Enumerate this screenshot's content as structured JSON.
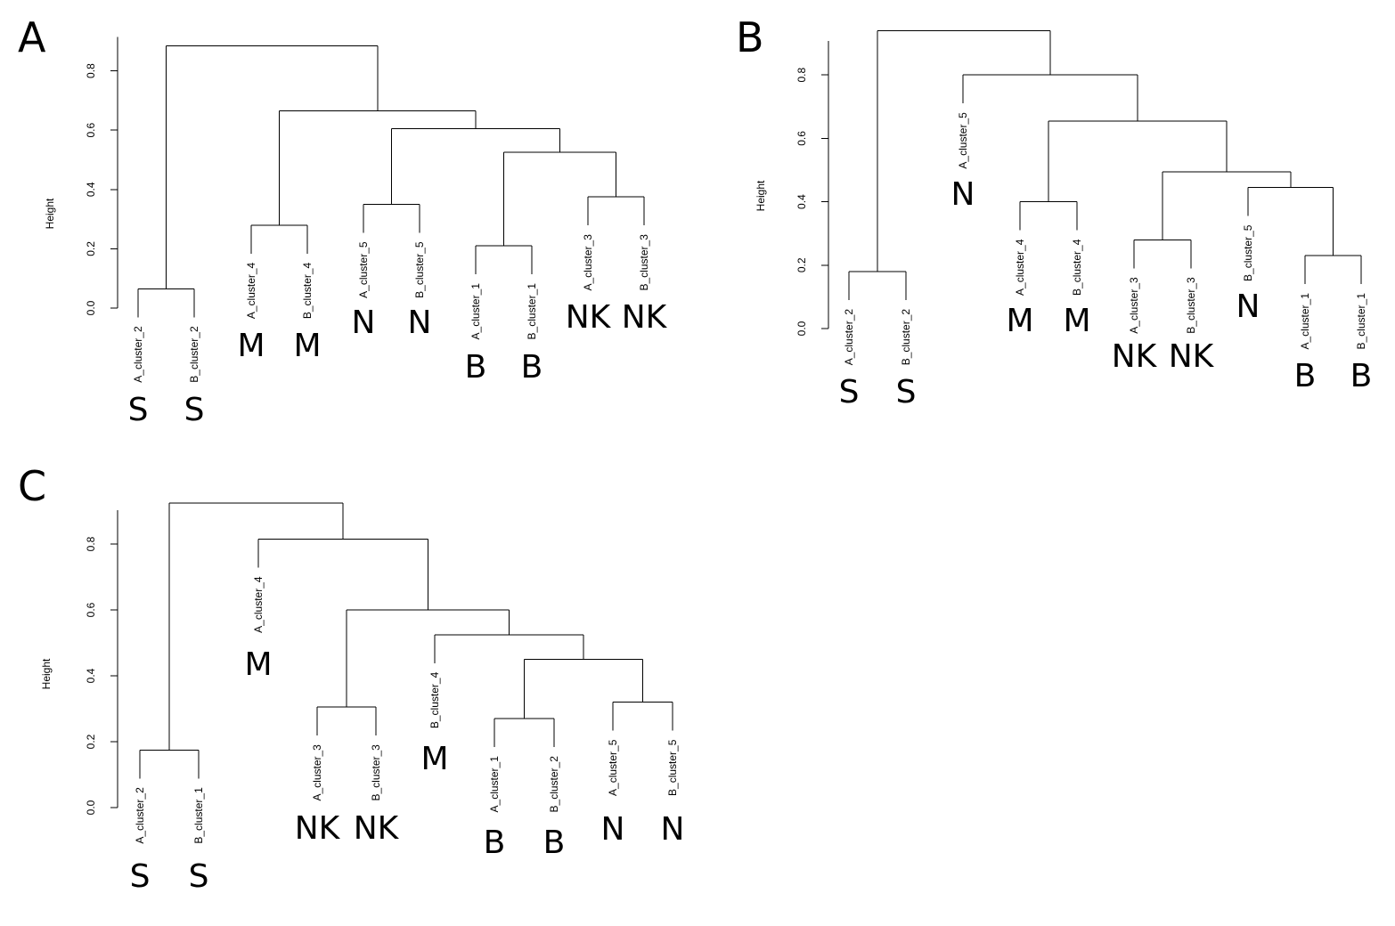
{
  "chart_data": [
    {
      "type": "dendrogram",
      "panel_label": "A",
      "ylabel": "Height",
      "ylim": [
        0,
        0.9
      ],
      "yticks": [
        "0.0",
        "0.2",
        "0.4",
        "0.6",
        "0.8"
      ],
      "leaves": [
        {
          "label": "A_cluster_2",
          "group": "S"
        },
        {
          "label": "B_cluster_2",
          "group": "S"
        },
        {
          "label": "A_cluster_4",
          "group": "M"
        },
        {
          "label": "B_cluster_4",
          "group": "M"
        },
        {
          "label": "A_cluster_5",
          "group": "N"
        },
        {
          "label": "B_cluster_5",
          "group": "N"
        },
        {
          "label": "A_cluster_1",
          "group": "B"
        },
        {
          "label": "B_cluster_1",
          "group": "B"
        },
        {
          "label": "A_cluster_3",
          "group": "NK"
        },
        {
          "label": "B_cluster_3",
          "group": "NK"
        }
      ],
      "merges": [
        {
          "left": 0,
          "right": 1,
          "height": 0.065
        },
        {
          "left": 2,
          "right": 3,
          "height": 0.28
        },
        {
          "left": 4,
          "right": 5,
          "height": 0.35
        },
        {
          "left": 6,
          "right": 7,
          "height": 0.21
        },
        {
          "left": 8,
          "right": 9,
          "height": 0.375
        },
        {
          "left": 13,
          "right": 14,
          "height": 0.525
        },
        {
          "left": 12,
          "right": 15,
          "height": 0.605
        },
        {
          "left": 11,
          "right": 16,
          "height": 0.665
        },
        {
          "left": 10,
          "right": 17,
          "height": 0.885
        }
      ]
    },
    {
      "type": "dendrogram",
      "panel_label": "B",
      "ylabel": "Height",
      "ylim": [
        0,
        0.95
      ],
      "yticks": [
        "0.0",
        "0.2",
        "0.4",
        "0.6",
        "0.8"
      ],
      "leaves": [
        {
          "label": "A_cluster_2",
          "group": "S"
        },
        {
          "label": "B_cluster_2",
          "group": "S"
        },
        {
          "label": "A_cluster_5",
          "group": "N"
        },
        {
          "label": "A_cluster_4",
          "group": "M"
        },
        {
          "label": "B_cluster_4",
          "group": "M"
        },
        {
          "label": "A_cluster_3",
          "group": "NK"
        },
        {
          "label": "B_cluster_3",
          "group": "NK"
        },
        {
          "label": "B_cluster_5",
          "group": "N"
        },
        {
          "label": "A_cluster_1",
          "group": "B"
        },
        {
          "label": "B_cluster_1",
          "group": "B"
        }
      ],
      "merges": [
        {
          "left": 0,
          "right": 1,
          "height": 0.18
        },
        {
          "left": 3,
          "right": 4,
          "height": 0.4
        },
        {
          "left": 5,
          "right": 6,
          "height": 0.28
        },
        {
          "left": 8,
          "right": 9,
          "height": 0.23
        },
        {
          "left": 7,
          "right": 13,
          "height": 0.445
        },
        {
          "left": 12,
          "right": 14,
          "height": 0.495
        },
        {
          "left": 11,
          "right": 15,
          "height": 0.655
        },
        {
          "left": 2,
          "right": 16,
          "height": 0.8
        },
        {
          "left": 10,
          "right": 17,
          "height": 0.94
        }
      ]
    },
    {
      "type": "dendrogram",
      "panel_label": "C",
      "ylabel": "Height",
      "ylim": [
        0,
        0.95
      ],
      "yticks": [
        "0.0",
        "0.2",
        "0.4",
        "0.6",
        "0.8"
      ],
      "leaves": [
        {
          "label": "A_cluster_2",
          "group": "S"
        },
        {
          "label": "B_cluster_1",
          "group": "S"
        },
        {
          "label": "A_cluster_4",
          "group": "M"
        },
        {
          "label": "A_cluster_3",
          "group": "NK"
        },
        {
          "label": "B_cluster_3",
          "group": "NK"
        },
        {
          "label": "B_cluster_4",
          "group": "M"
        },
        {
          "label": "A_cluster_1",
          "group": "B"
        },
        {
          "label": "B_cluster_2",
          "group": "B"
        },
        {
          "label": "A_cluster_5",
          "group": "N"
        },
        {
          "label": "B_cluster_5",
          "group": "N"
        }
      ],
      "merges": [
        {
          "left": 0,
          "right": 1,
          "height": 0.175
        },
        {
          "left": 3,
          "right": 4,
          "height": 0.305
        },
        {
          "left": 6,
          "right": 7,
          "height": 0.27
        },
        {
          "left": 8,
          "right": 9,
          "height": 0.32
        },
        {
          "left": 12,
          "right": 13,
          "height": 0.45
        },
        {
          "left": 5,
          "right": 14,
          "height": 0.525
        },
        {
          "left": 11,
          "right": 15,
          "height": 0.6
        },
        {
          "left": 2,
          "right": 16,
          "height": 0.815
        },
        {
          "left": 10,
          "right": 17,
          "height": 0.925
        }
      ]
    }
  ]
}
